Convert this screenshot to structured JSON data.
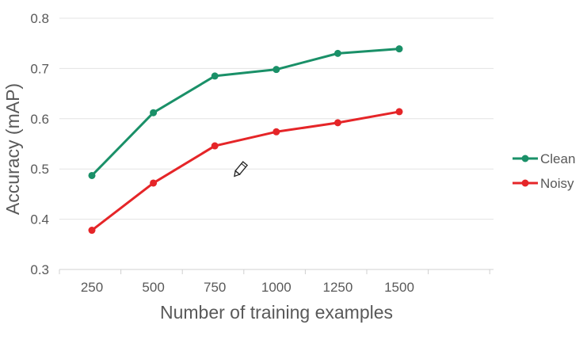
{
  "chart_data": {
    "type": "line",
    "xlabel": "Number of training examples",
    "ylabel": "Accuracy (mAP)",
    "categories": [
      "250",
      "500",
      "750",
      "1000",
      "1250",
      "1500"
    ],
    "ylim": [
      0.3,
      0.8
    ],
    "yticks": [
      "0.3",
      "0.4",
      "0.5",
      "0.6",
      "0.7",
      "0.8"
    ],
    "grid": "horizontal",
    "legend_position": "right",
    "series": [
      {
        "name": "Clean",
        "color": "#1a9068",
        "values": [
          0.487,
          0.612,
          0.685,
          0.698,
          0.73,
          0.739
        ]
      },
      {
        "name": "Noisy",
        "color": "#e52528",
        "values": [
          0.378,
          0.472,
          0.546,
          0.574,
          0.592,
          0.614
        ]
      }
    ]
  },
  "overlay": {
    "cursor_icon": "pencil-cursor-icon"
  }
}
